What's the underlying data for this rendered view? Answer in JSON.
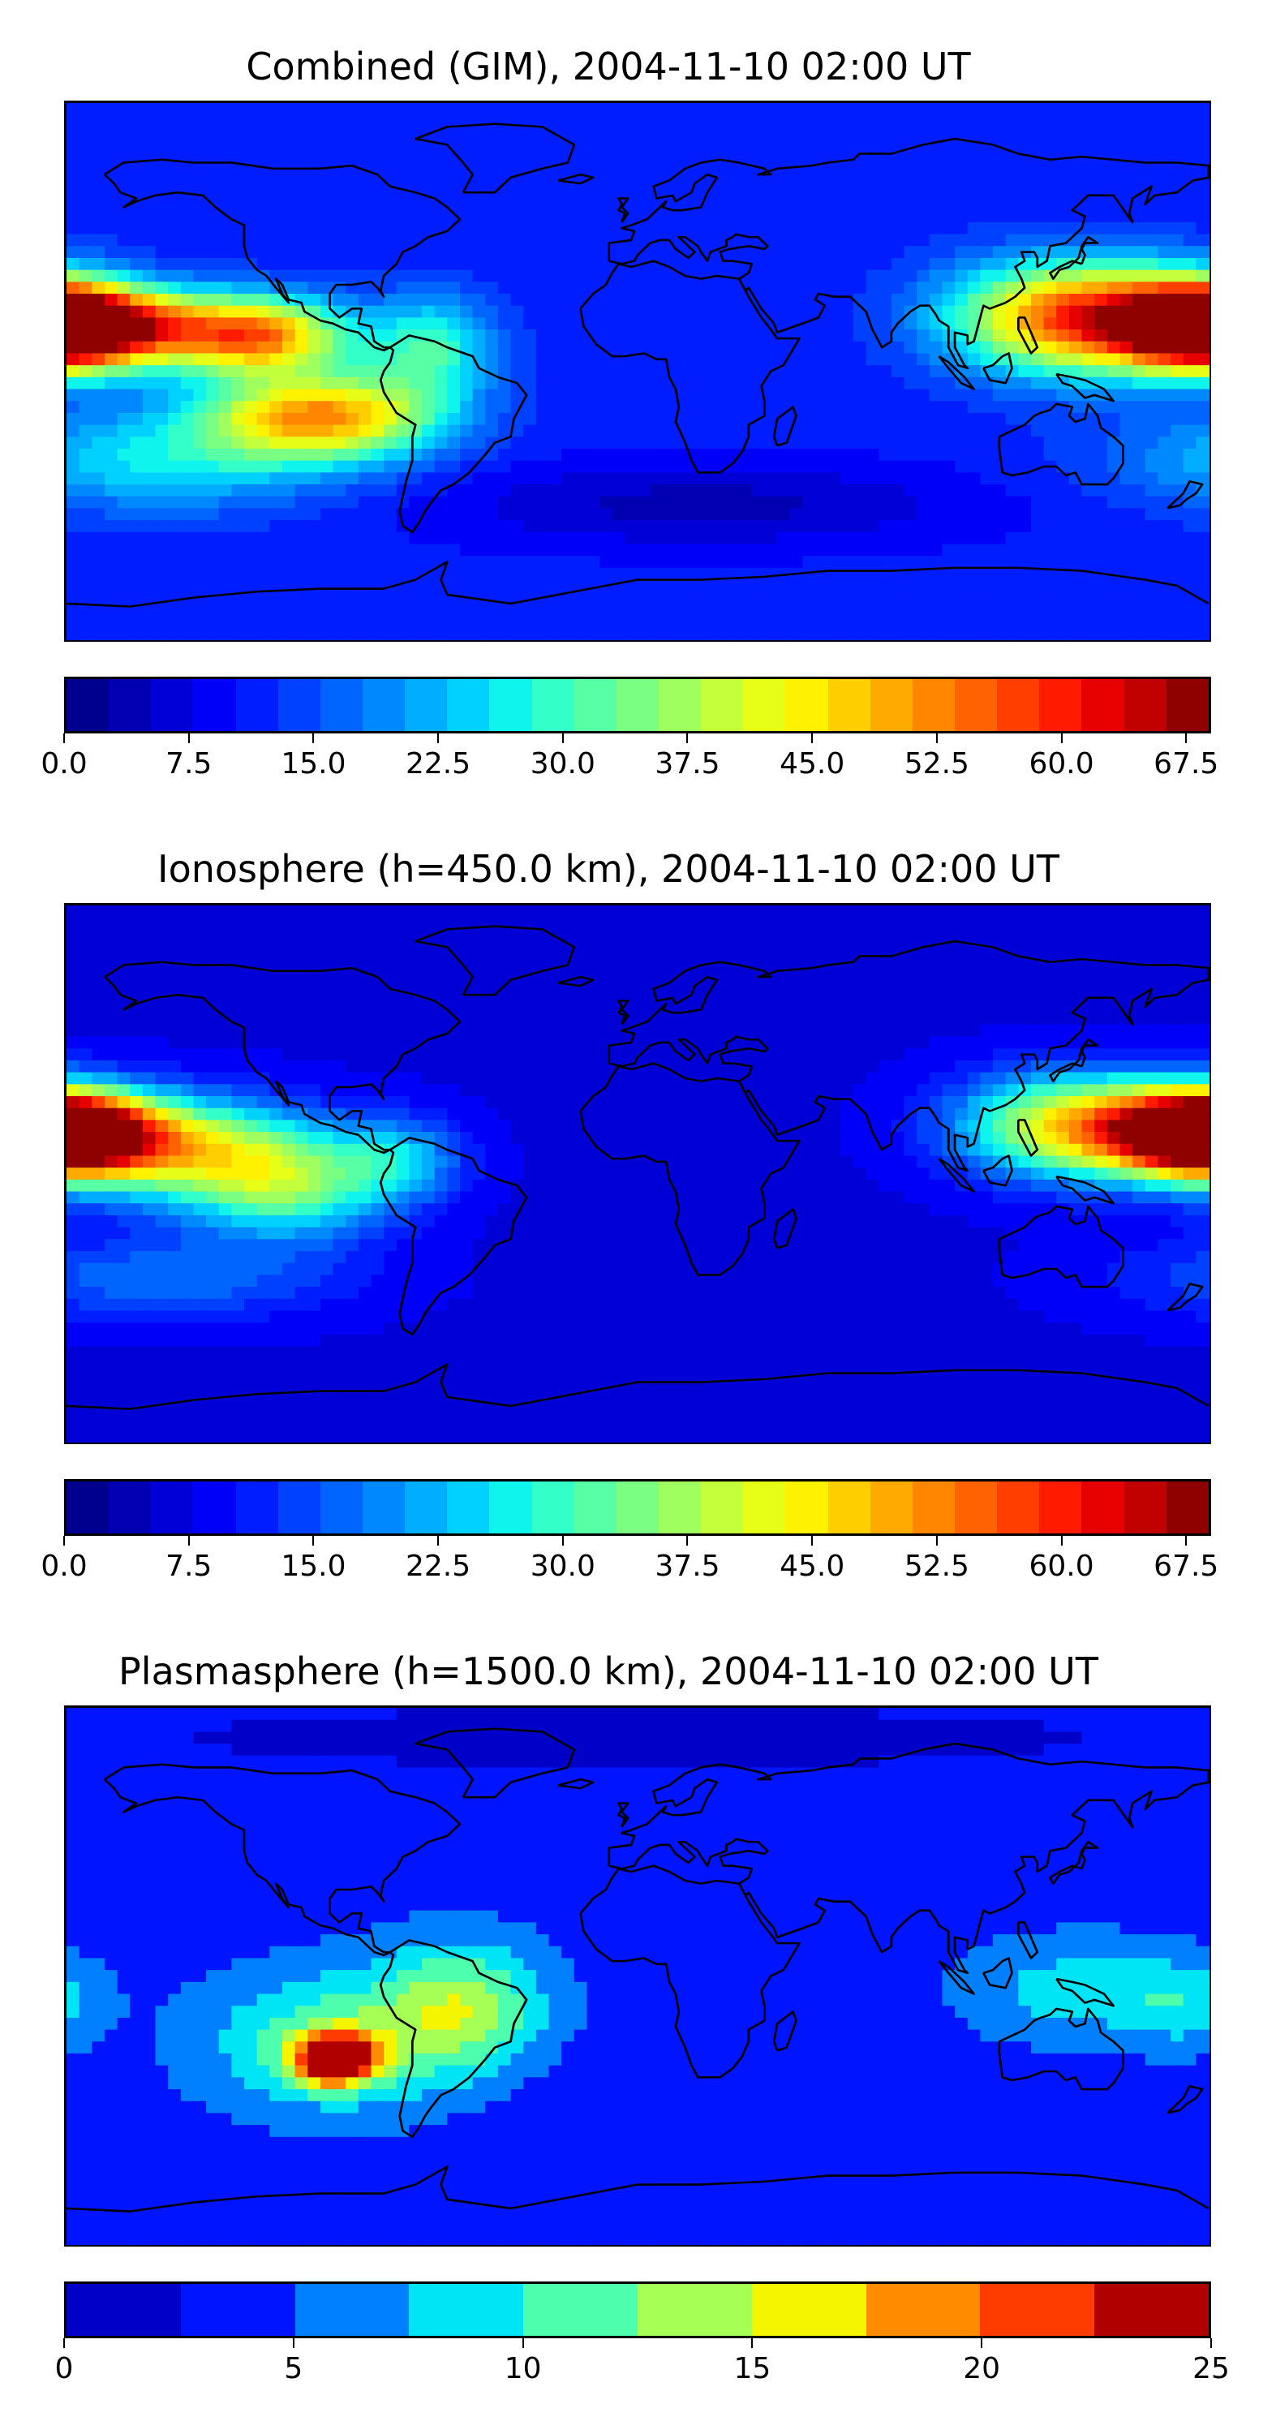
{
  "panels": [
    {
      "title": "Combined (GIM), 2004-11-10 02:00 UT",
      "colorbar": {
        "min": 0,
        "max": 69,
        "step": 2.5,
        "ticks": [
          "0.0",
          "7.5",
          "15.0",
          "22.5",
          "30.0",
          "37.5",
          "45.0",
          "52.5",
          "60.0",
          "67.5"
        ],
        "tick_values": [
          0,
          7.5,
          15,
          22.5,
          30,
          37.5,
          45,
          52.5,
          60,
          67.5
        ],
        "colors": [
          "#00008f",
          "#0000b2",
          "#0000d6",
          "#0000fa",
          "#001dff",
          "#0041ff",
          "#0065ff",
          "#0089ff",
          "#00adff",
          "#00d1ff",
          "#0ff5ed",
          "#33ffc9",
          "#57ffa5",
          "#7bff82",
          "#9fff5e",
          "#c3ff3a",
          "#e7ff16",
          "#fff200",
          "#ffce00",
          "#ffaa00",
          "#ff8600",
          "#ff6200",
          "#ff3e00",
          "#ff1a00",
          "#e60000",
          "#c10000",
          "#8f0000"
        ]
      },
      "field": {
        "base": 11,
        "blobs": [
          {
            "lon": -170,
            "lat": 15,
            "amp": 45,
            "slon": 24,
            "slat": 9
          },
          {
            "lon": -120,
            "lat": 12,
            "amp": 40,
            "slon": 20,
            "slat": 9
          },
          {
            "lon": -100,
            "lat": -15,
            "amp": 38,
            "slon": 26,
            "slat": 10
          },
          {
            "lon": -65,
            "lat": 8,
            "amp": 18,
            "slon": 14,
            "slat": 12
          },
          {
            "lon": 140,
            "lat": 18,
            "amp": 45,
            "slon": 28,
            "slat": 13
          },
          {
            "lon": 178,
            "lat": 15,
            "amp": 40,
            "slon": 16,
            "slat": 10
          },
          {
            "lon": -150,
            "lat": -30,
            "amp": 14,
            "slon": 40,
            "slat": 12
          },
          {
            "lon": 20,
            "lat": -45,
            "amp": -7,
            "slon": 60,
            "slat": 10
          }
        ]
      }
    },
    {
      "title": "Ionosphere  (h=450.0 km), 2004-11-10 02:00 UT",
      "colorbar": {
        "min": 0,
        "max": 69,
        "step": 2.5,
        "ticks": [
          "0.0",
          "7.5",
          "15.0",
          "22.5",
          "30.0",
          "37.5",
          "45.0",
          "52.5",
          "60.0",
          "67.5"
        ],
        "tick_values": [
          0,
          7.5,
          15,
          22.5,
          30,
          37.5,
          45,
          52.5,
          60,
          67.5
        ],
        "colors": [
          "#00008f",
          "#0000b2",
          "#0000d6",
          "#0000fa",
          "#001dff",
          "#0041ff",
          "#0065ff",
          "#0089ff",
          "#00adff",
          "#00d1ff",
          "#0ff5ed",
          "#33ffc9",
          "#57ffa5",
          "#7bff82",
          "#9fff5e",
          "#c3ff3a",
          "#e7ff16",
          "#fff200",
          "#ffce00",
          "#ffaa00",
          "#ff8600",
          "#ff6200",
          "#ff3e00",
          "#ff1a00",
          "#e60000",
          "#c10000",
          "#8f0000"
        ]
      },
      "field": {
        "base": 7,
        "blobs": [
          {
            "lon": -178,
            "lat": 13,
            "amp": 42,
            "slon": 22,
            "slat": 10
          },
          {
            "lon": -140,
            "lat": 8,
            "amp": 28,
            "slon": 28,
            "slat": 12
          },
          {
            "lon": -110,
            "lat": -5,
            "amp": 22,
            "slon": 22,
            "slat": 12
          },
          {
            "lon": -75,
            "lat": 5,
            "amp": 14,
            "slon": 14,
            "slat": 10
          },
          {
            "lon": 140,
            "lat": 16,
            "amp": 38,
            "slon": 26,
            "slat": 12
          },
          {
            "lon": 178,
            "lat": 14,
            "amp": 40,
            "slon": 16,
            "slat": 9
          },
          {
            "lon": -150,
            "lat": -35,
            "amp": 10,
            "slon": 40,
            "slat": 10
          }
        ]
      }
    },
    {
      "title": "Plasmasphere (h=1500.0 km), 2004-11-10 02:00 UT",
      "colorbar": {
        "min": 0,
        "max": 25,
        "step": 2.5,
        "ticks": [
          "0",
          "5",
          "10",
          "15",
          "20",
          "25"
        ],
        "tick_values": [
          0,
          5,
          10,
          15,
          20,
          25
        ],
        "colors": [
          "#0000c8",
          "#0014ff",
          "#0080ff",
          "#00e5f5",
          "#4dffad",
          "#a6ff55",
          "#f5f500",
          "#ff8c00",
          "#ff3c00",
          "#b00000"
        ]
      },
      "field": {
        "base": 4,
        "blobs": [
          {
            "lon": -95,
            "lat": -28,
            "amp": 21,
            "slon": 9,
            "slat": 6
          },
          {
            "lon": -95,
            "lat": -22,
            "amp": 8,
            "slon": 28,
            "slat": 16
          },
          {
            "lon": -55,
            "lat": -10,
            "amp": 9,
            "slon": 18,
            "slat": 15
          },
          {
            "lon": 140,
            "lat": -5,
            "amp": 5,
            "slon": 25,
            "slat": 12
          },
          {
            "lon": 172,
            "lat": -10,
            "amp": 4,
            "slon": 12,
            "slat": 10
          },
          {
            "lon": 30,
            "lat": -40,
            "amp": -1.5,
            "slon": 50,
            "slat": 12
          },
          {
            "lon": 0,
            "lat": 80,
            "amp": -3,
            "slon": 120,
            "slat": 8
          }
        ]
      }
    }
  ]
}
